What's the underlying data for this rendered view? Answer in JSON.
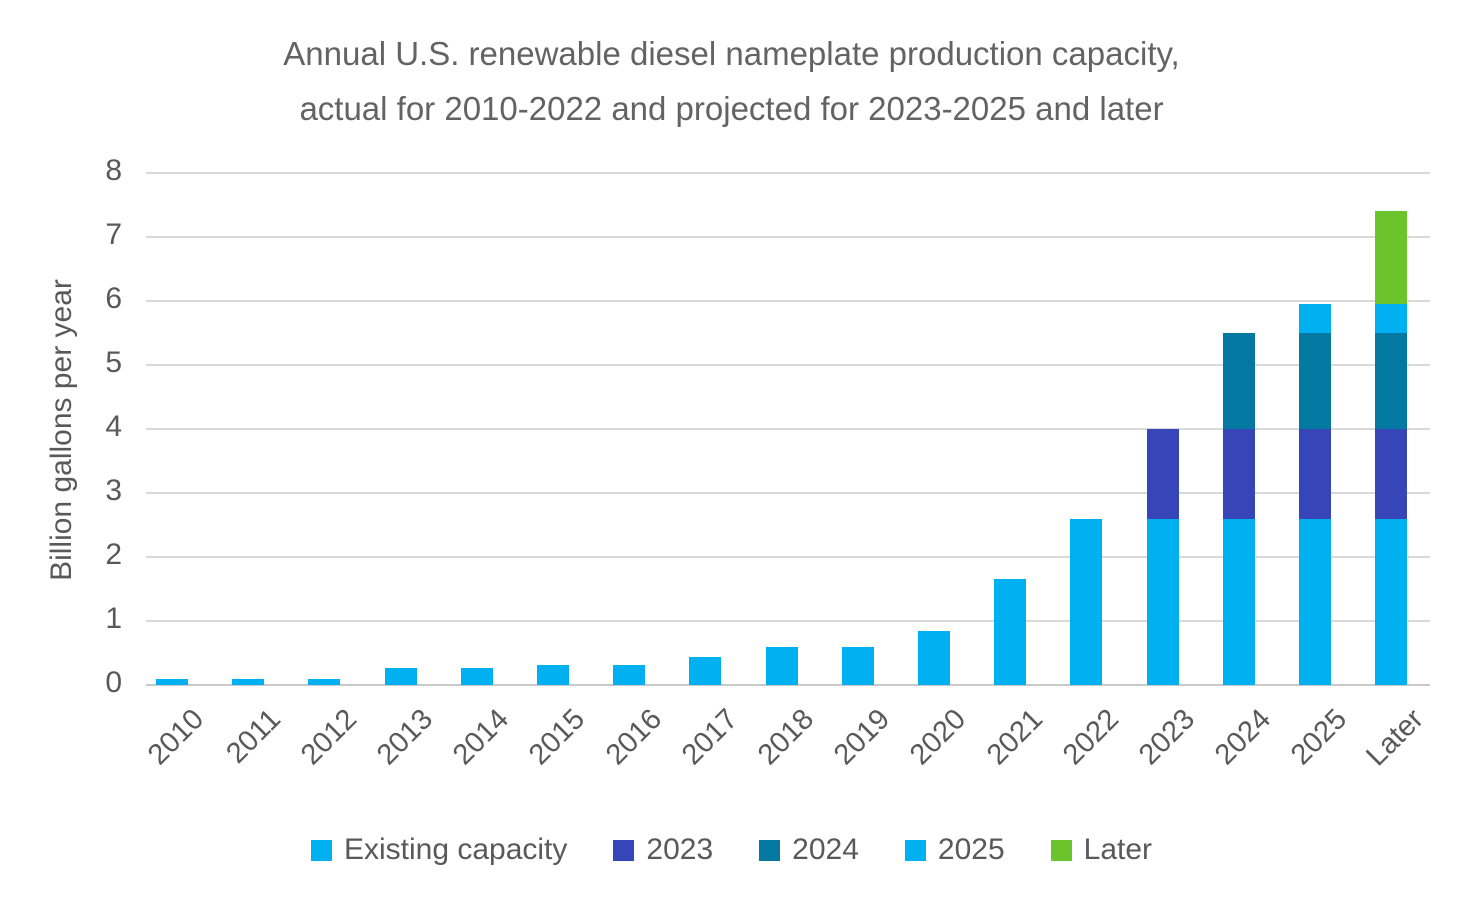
{
  "title": {
    "line1": "Annual U.S. renewable diesel nameplate production capacity,",
    "line2": "actual for 2010-2022 and projected for 2023-2025 and later"
  },
  "colors": {
    "text": "#595959",
    "title_text": "#636363",
    "grid": "#D9D9D9",
    "axis_line": "#C9C9C9",
    "background": "#FFFFFF",
    "cyan": "#00B0F0",
    "indigo": "#3645B7",
    "teal": "#0378A1",
    "green": "#6CC42D"
  },
  "chart_data": {
    "type": "bar",
    "stacked": true,
    "title": "Annual U.S. renewable diesel nameplate production capacity, actual for 2010-2022 and projected for 2023-2025 and later",
    "xlabel": "",
    "ylabel": "Billion gallons per year",
    "ylim": [
      0,
      8
    ],
    "yticks": [
      0,
      1,
      2,
      3,
      4,
      5,
      6,
      7,
      8
    ],
    "grid": "horizontal-only",
    "legend_position": "bottom",
    "x_tick_rotation_deg": -45,
    "categories": [
      "2010",
      "2011",
      "2012",
      "2013",
      "2014",
      "2015",
      "2016",
      "2017",
      "2018",
      "2019",
      "2020",
      "2021",
      "2022",
      "2023",
      "2024",
      "2025",
      "Later"
    ],
    "series": [
      {
        "name": "Existing capacity",
        "color": "#00B0F0",
        "values": [
          0.1,
          0.1,
          0.1,
          0.27,
          0.27,
          0.31,
          0.31,
          0.43,
          0.6,
          0.6,
          0.85,
          1.65,
          2.6,
          2.6,
          2.6,
          2.6,
          2.6
        ]
      },
      {
        "name": "2023",
        "color": "#3645B7",
        "values": [
          0,
          0,
          0,
          0,
          0,
          0,
          0,
          0,
          0,
          0,
          0,
          0,
          0,
          1.4,
          1.4,
          1.4,
          1.4
        ]
      },
      {
        "name": "2024",
        "color": "#0378A1",
        "values": [
          0,
          0,
          0,
          0,
          0,
          0,
          0,
          0,
          0,
          0,
          0,
          0,
          0,
          0,
          1.5,
          1.5,
          1.5
        ]
      },
      {
        "name": "2025",
        "color": "#00B0F0",
        "values": [
          0,
          0,
          0,
          0,
          0,
          0,
          0,
          0,
          0,
          0,
          0,
          0,
          0,
          0,
          0,
          0.45,
          0.45
        ]
      },
      {
        "name": "Later",
        "color": "#6CC42D",
        "values": [
          0,
          0,
          0,
          0,
          0,
          0,
          0,
          0,
          0,
          0,
          0,
          0,
          0,
          0,
          0,
          0,
          1.45
        ]
      }
    ],
    "stack_totals": [
      0.1,
      0.1,
      0.1,
      0.27,
      0.27,
      0.31,
      0.31,
      0.43,
      0.6,
      0.6,
      0.85,
      1.65,
      2.6,
      4.0,
      5.5,
      5.95,
      7.4
    ],
    "legend": [
      "Existing capacity",
      "2023",
      "2024",
      "2025",
      "Later"
    ]
  }
}
